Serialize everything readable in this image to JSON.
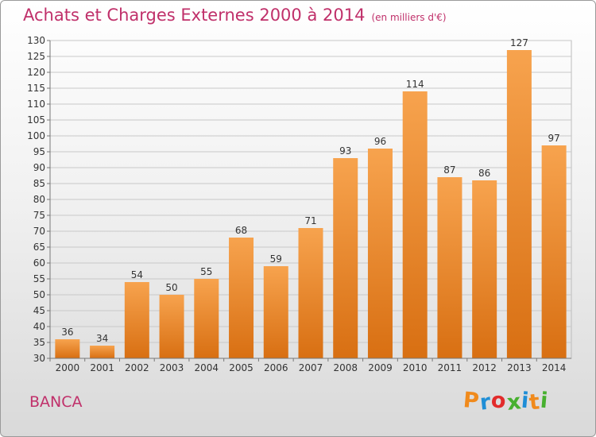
{
  "title": "Achats et Charges Externes 2000 à 2014",
  "subtitle": "(en milliers d'€)",
  "commune": "BANCA",
  "logo": {
    "letters": [
      "P",
      "r",
      "o",
      "x",
      "i",
      "t",
      "i"
    ],
    "colors": [
      "#f08a1c",
      "#1f8ed6",
      "#e22b2b",
      "#47b02f",
      "#1f8ed6",
      "#f08a1c",
      "#47b02f"
    ]
  },
  "chart_data": {
    "type": "bar",
    "categories": [
      "2000",
      "2001",
      "2002",
      "2003",
      "2004",
      "2005",
      "2006",
      "2007",
      "2008",
      "2009",
      "2010",
      "2011",
      "2012",
      "2013",
      "2014"
    ],
    "values": [
      36,
      34,
      54,
      50,
      55,
      68,
      59,
      71,
      93,
      96,
      114,
      87,
      86,
      127,
      97
    ],
    "ylim": [
      30,
      130
    ],
    "yticks": [
      30,
      35,
      40,
      45,
      50,
      55,
      60,
      65,
      70,
      75,
      80,
      85,
      90,
      95,
      100,
      105,
      110,
      115,
      120,
      125,
      130
    ],
    "grid": true,
    "bar_color": "#f08a2a"
  }
}
